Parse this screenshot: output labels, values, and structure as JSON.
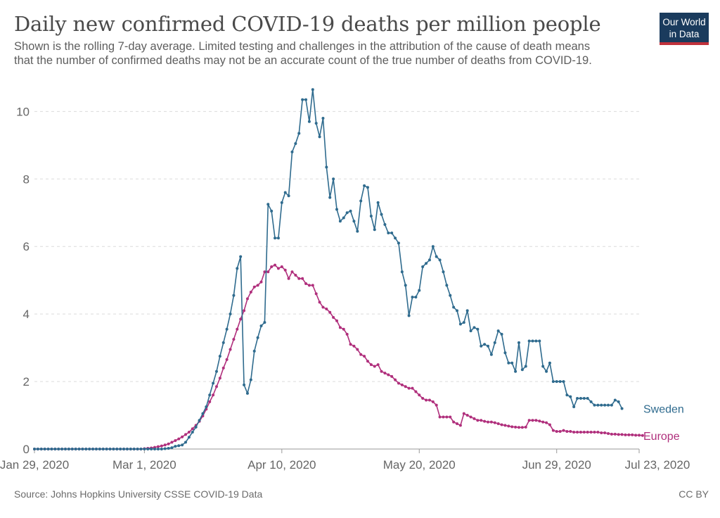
{
  "header": {
    "title": "Daily new confirmed COVID-19 deaths per million people",
    "subtitle_line1": "Shown is the rolling 7-day average. Limited testing and challenges in the attribution of the cause of death means",
    "subtitle_line2": "that the number of confirmed deaths may not be an accurate count of the true number of deaths from COVID-19.",
    "logo_line1": "Our World",
    "logo_line2": "in Data"
  },
  "footer": {
    "source": "Source: Johns Hopkins University CSSE COVID-19 Data",
    "license": "CC BY"
  },
  "colors": {
    "sweden": "#2f6b8e",
    "europe": "#b02f7c",
    "grid": "#dcdcdc",
    "axis": "#666666",
    "logo_bg": "#1a3b5d",
    "logo_accent": "#c0313c"
  },
  "chart_data": {
    "type": "line",
    "title": "Daily new confirmed COVID-19 deaths per million people",
    "xlabel": "",
    "ylabel": "",
    "x_start": "2020-01-29",
    "x_end": "2020-07-23",
    "xlim": [
      0,
      176
    ],
    "ylim": [
      0,
      10.8
    ],
    "y_ticks": [
      0,
      2,
      4,
      6,
      8,
      10
    ],
    "x_ticks": [
      {
        "label": "Jan 29, 2020",
        "day": 0
      },
      {
        "label": "Mar 1, 2020",
        "day": 32
      },
      {
        "label": "Apr 10, 2020",
        "day": 72
      },
      {
        "label": "May 20, 2020",
        "day": 112
      },
      {
        "label": "Jun 29, 2020",
        "day": 152
      },
      {
        "label": "Jul 23, 2020",
        "day": 176
      }
    ],
    "grid": true,
    "legend": "inline labels at line ends",
    "series": [
      {
        "name": "Sweden",
        "key": "sweden",
        "values": [
          0,
          0,
          0,
          0,
          0,
          0,
          0,
          0,
          0,
          0,
          0,
          0,
          0,
          0,
          0,
          0,
          0,
          0,
          0,
          0,
          0,
          0,
          0,
          0,
          0,
          0,
          0,
          0,
          0,
          0,
          0,
          0,
          0,
          0,
          0,
          0,
          0,
          0,
          0.01,
          0.02,
          0.04,
          0.08,
          0.1,
          0.12,
          0.2,
          0.35,
          0.5,
          0.65,
          0.85,
          1.05,
          1.25,
          1.6,
          1.95,
          2.3,
          2.75,
          3.15,
          3.55,
          4.0,
          4.55,
          5.35,
          5.7,
          1.9,
          1.65,
          2.05,
          2.9,
          3.3,
          3.65,
          3.75,
          7.25,
          7.05,
          6.25,
          6.25,
          7.3,
          7.6,
          7.5,
          8.8,
          9.05,
          9.35,
          10.35,
          10.35,
          9.7,
          10.65,
          9.65,
          9.25,
          9.8,
          8.35,
          7.45,
          8.0,
          7.1,
          6.75,
          6.85,
          7.0,
          7.05,
          6.75,
          6.45,
          7.35,
          7.8,
          7.75,
          6.9,
          6.5,
          7.3,
          6.95,
          6.65,
          6.4,
          6.4,
          6.25,
          6.1,
          5.25,
          4.85,
          3.95,
          4.5,
          4.5,
          4.7,
          5.4,
          5.5,
          5.6,
          6.0,
          5.7,
          5.6,
          5.25,
          4.85,
          4.55,
          4.2,
          4.1,
          3.7,
          3.75,
          4.1,
          3.5,
          3.6,
          3.55,
          3.05,
          3.1,
          3.05,
          2.8,
          3.15,
          3.5,
          3.4,
          2.85,
          2.55,
          2.55,
          2.3,
          3.15,
          2.35,
          2.45,
          3.2,
          3.2,
          3.2,
          3.2,
          2.45,
          2.3,
          2.55,
          2.0,
          2.0,
          2.0,
          2.0,
          1.6,
          1.55,
          1.25,
          1.5,
          1.5,
          1.5,
          1.5,
          1.4,
          1.3,
          1.3,
          1.3,
          1.3,
          1.3,
          1.3,
          1.45,
          1.4,
          1.2
        ]
      },
      {
        "name": "Europe",
        "key": "europe",
        "values": [
          0,
          0,
          0,
          0,
          0,
          0,
          0,
          0,
          0,
          0,
          0,
          0,
          0,
          0,
          0,
          0,
          0,
          0,
          0,
          0,
          0,
          0,
          0,
          0,
          0,
          0,
          0,
          0,
          0,
          0,
          0,
          0,
          0.01,
          0.02,
          0.03,
          0.05,
          0.07,
          0.09,
          0.12,
          0.15,
          0.2,
          0.25,
          0.3,
          0.36,
          0.43,
          0.5,
          0.6,
          0.7,
          0.82,
          0.98,
          1.18,
          1.4,
          1.6,
          1.85,
          2.1,
          2.4,
          2.65,
          2.95,
          3.25,
          3.55,
          3.85,
          4.1,
          4.45,
          4.65,
          4.8,
          4.85,
          4.95,
          5.25,
          5.25,
          5.4,
          5.45,
          5.35,
          5.4,
          5.3,
          5.05,
          5.25,
          5.15,
          5.05,
          5.05,
          4.9,
          4.85,
          4.85,
          4.6,
          4.35,
          4.2,
          4.15,
          4.05,
          3.9,
          3.8,
          3.6,
          3.55,
          3.4,
          3.1,
          3.05,
          2.95,
          2.8,
          2.75,
          2.6,
          2.5,
          2.45,
          2.5,
          2.3,
          2.25,
          2.2,
          2.15,
          2.05,
          1.95,
          1.9,
          1.85,
          1.8,
          1.8,
          1.7,
          1.6,
          1.5,
          1.45,
          1.45,
          1.4,
          1.3,
          0.95,
          0.95,
          0.95,
          0.95,
          0.8,
          0.75,
          0.7,
          1.05,
          1.0,
          0.95,
          0.9,
          0.85,
          0.85,
          0.82,
          0.8,
          0.8,
          0.78,
          0.75,
          0.72,
          0.7,
          0.68,
          0.66,
          0.65,
          0.64,
          0.64,
          0.65,
          0.85,
          0.85,
          0.85,
          0.83,
          0.8,
          0.78,
          0.72,
          0.55,
          0.52,
          0.52,
          0.55,
          0.52,
          0.52,
          0.5,
          0.5,
          0.5,
          0.5,
          0.5,
          0.5,
          0.5,
          0.5,
          0.48,
          0.48,
          0.46,
          0.44,
          0.44,
          0.43,
          0.43,
          0.42,
          0.42,
          0.42,
          0.41,
          0.41,
          0.4
        ]
      }
    ]
  }
}
